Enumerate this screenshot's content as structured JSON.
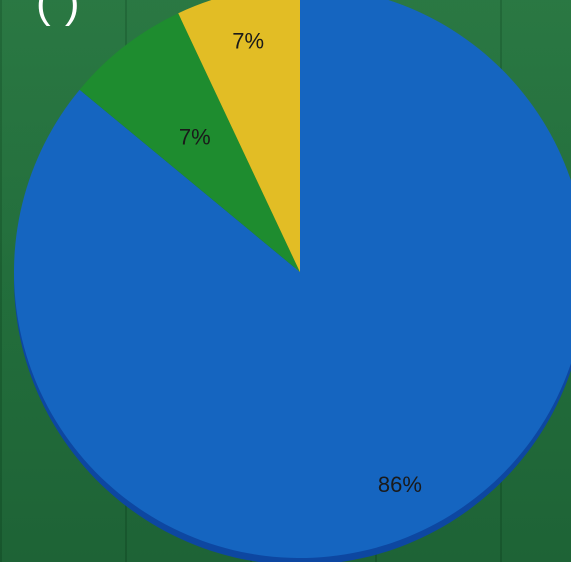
{
  "title_fragment": "(   )",
  "chart_data": {
    "type": "pie",
    "categories": [
      "",
      "",
      ""
    ],
    "values": [
      86,
      7,
      7
    ],
    "labels": [
      "86%",
      "7%",
      "7%"
    ],
    "colors": [
      "#1565c0",
      "#1e8c2f",
      "#e2bd25"
    ],
    "edge_colors": [
      "#0d47a1",
      "#14641f",
      "#b8951a"
    ],
    "start_angle_deg": 0,
    "direction": "clockwise",
    "legend": "none"
  }
}
